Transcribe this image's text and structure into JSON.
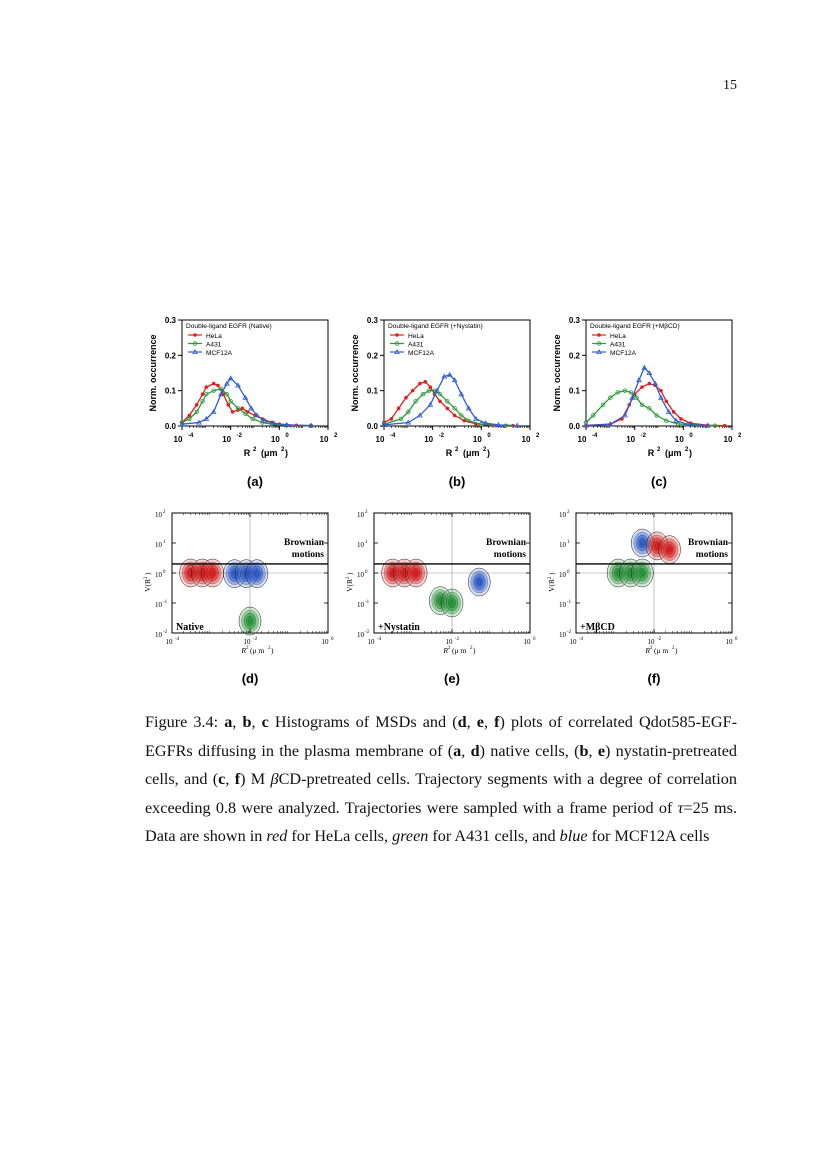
{
  "page_number": "15",
  "colors": {
    "hela": "#e02020",
    "a431": "#2a9a3a",
    "mcf12a": "#2f5fd0"
  },
  "chart_data": [
    {
      "type": "line",
      "panel_label": "(a)",
      "legend_title": "Double-ligand EGFR (Native)",
      "legend": [
        "HeLa",
        "A431",
        "MCF12A"
      ],
      "xlabel": "R",
      "ylabel": "Norm. occurrence",
      "xscale": "log",
      "xlim": [
        0.0001,
        100
      ],
      "ylim": [
        0,
        0.3
      ],
      "yticks": [
        "0.0",
        "0.1",
        "0.2",
        "0.3"
      ],
      "xticks": [
        "10",
        "10",
        "10",
        "10"
      ],
      "xtick_exps": [
        "-4",
        "-2",
        "0",
        "2"
      ],
      "series": [
        {
          "name": "HeLa",
          "points": [
            [
              0.0001,
              0.01
            ],
            [
              0.0002,
              0.03
            ],
            [
              0.0004,
              0.06
            ],
            [
              0.0007,
              0.09
            ],
            [
              0.001,
              0.11
            ],
            [
              0.002,
              0.12
            ],
            [
              0.003,
              0.115
            ],
            [
              0.005,
              0.09
            ],
            [
              0.008,
              0.06
            ],
            [
              0.012,
              0.04
            ],
            [
              0.02,
              0.045
            ],
            [
              0.03,
              0.05
            ],
            [
              0.05,
              0.04
            ],
            [
              0.1,
              0.03
            ],
            [
              0.2,
              0.02
            ],
            [
              0.5,
              0.01
            ],
            [
              1,
              0.005
            ],
            [
              5,
              0.002
            ],
            [
              20,
              0.001
            ]
          ]
        },
        {
          "name": "A431",
          "points": [
            [
              0.0001,
              0.01
            ],
            [
              0.0002,
              0.02
            ],
            [
              0.0004,
              0.04
            ],
            [
              0.0007,
              0.07
            ],
            [
              0.001,
              0.09
            ],
            [
              0.002,
              0.1
            ],
            [
              0.004,
              0.105
            ],
            [
              0.007,
              0.09
            ],
            [
              0.01,
              0.07
            ],
            [
              0.02,
              0.05
            ],
            [
              0.04,
              0.035
            ],
            [
              0.08,
              0.02
            ],
            [
              0.2,
              0.01
            ],
            [
              0.5,
              0.005
            ],
            [
              2,
              0.002
            ],
            [
              20,
              0.001
            ]
          ]
        },
        {
          "name": "MCF12A",
          "points": [
            [
              0.0001,
              0.005
            ],
            [
              0.0005,
              0.01
            ],
            [
              0.001,
              0.02
            ],
            [
              0.002,
              0.04
            ],
            [
              0.004,
              0.09
            ],
            [
              0.007,
              0.12
            ],
            [
              0.01,
              0.135
            ],
            [
              0.02,
              0.115
            ],
            [
              0.04,
              0.08
            ],
            [
              0.07,
              0.05
            ],
            [
              0.12,
              0.03
            ],
            [
              0.25,
              0.015
            ],
            [
              0.6,
              0.007
            ],
            [
              2,
              0.003
            ],
            [
              20,
              0.001
            ]
          ]
        }
      ]
    },
    {
      "type": "line",
      "panel_label": "(b)",
      "legend_title": "Double-ligand EGFR (+Nystatin)",
      "legend": [
        "HeLa",
        "A431",
        "MCF12A"
      ],
      "xlabel": "R",
      "ylabel": "Norm. occurrence",
      "xscale": "log",
      "xlim": [
        0.0001,
        100
      ],
      "ylim": [
        0,
        0.3
      ],
      "yticks": [
        "0.0",
        "0.1",
        "0.2",
        "0.3"
      ],
      "xticks": [
        "10",
        "10",
        "10",
        "10"
      ],
      "xtick_exps": [
        "-4",
        "-2",
        "0",
        "2"
      ],
      "series": [
        {
          "name": "HeLa",
          "points": [
            [
              0.0001,
              0.01
            ],
            [
              0.0002,
              0.02
            ],
            [
              0.0004,
              0.05
            ],
            [
              0.0008,
              0.08
            ],
            [
              0.0015,
              0.1
            ],
            [
              0.003,
              0.12
            ],
            [
              0.005,
              0.125
            ],
            [
              0.008,
              0.11
            ],
            [
              0.012,
              0.09
            ],
            [
              0.02,
              0.07
            ],
            [
              0.04,
              0.05
            ],
            [
              0.08,
              0.03
            ],
            [
              0.2,
              0.015
            ],
            [
              0.6,
              0.006
            ],
            [
              3,
              0.002
            ],
            [
              20,
              0.001
            ]
          ]
        },
        {
          "name": "A431",
          "points": [
            [
              0.0001,
              0.005
            ],
            [
              0.0005,
              0.02
            ],
            [
              0.001,
              0.04
            ],
            [
              0.002,
              0.07
            ],
            [
              0.004,
              0.09
            ],
            [
              0.007,
              0.1
            ],
            [
              0.012,
              0.1
            ],
            [
              0.02,
              0.09
            ],
            [
              0.04,
              0.07
            ],
            [
              0.08,
              0.05
            ],
            [
              0.15,
              0.03
            ],
            [
              0.3,
              0.015
            ],
            [
              1,
              0.005
            ],
            [
              10,
              0.001
            ]
          ]
        },
        {
          "name": "MCF12A",
          "points": [
            [
              0.0001,
              0.003
            ],
            [
              0.001,
              0.01
            ],
            [
              0.003,
              0.03
            ],
            [
              0.008,
              0.06
            ],
            [
              0.015,
              0.1
            ],
            [
              0.03,
              0.14
            ],
            [
              0.05,
              0.145
            ],
            [
              0.08,
              0.13
            ],
            [
              0.15,
              0.09
            ],
            [
              0.3,
              0.05
            ],
            [
              0.6,
              0.02
            ],
            [
              1.5,
              0.008
            ],
            [
              5,
              0.003
            ],
            [
              30,
              0.001
            ]
          ]
        }
      ]
    },
    {
      "type": "line",
      "panel_label": "(c)",
      "legend_title": "Double-ligand EGFR (+MβCD)",
      "legend": [
        "HeLa",
        "A431",
        "MCF12A"
      ],
      "xlabel": "R",
      "ylabel": "Norm. occurrence",
      "xscale": "log",
      "xlim": [
        0.0001,
        100
      ],
      "ylim": [
        0,
        0.3
      ],
      "yticks": [
        "0.0",
        "0.1",
        "0.2",
        "0.3"
      ],
      "xticks": [
        "10",
        "10",
        "10",
        "10"
      ],
      "xtick_exps": [
        "-4",
        "-2",
        "0",
        "2"
      ],
      "series": [
        {
          "name": "HeLa",
          "points": [
            [
              0.0001,
              0.002
            ],
            [
              0.001,
              0.005
            ],
            [
              0.003,
              0.02
            ],
            [
              0.006,
              0.06
            ],
            [
              0.01,
              0.09
            ],
            [
              0.02,
              0.11
            ],
            [
              0.04,
              0.12
            ],
            [
              0.07,
              0.115
            ],
            [
              0.12,
              0.1
            ],
            [
              0.2,
              0.07
            ],
            [
              0.4,
              0.04
            ],
            [
              0.8,
              0.02
            ],
            [
              2,
              0.008
            ],
            [
              10,
              0.002
            ],
            [
              50,
              0.001
            ]
          ]
        },
        {
          "name": "A431",
          "points": [
            [
              0.0001,
              0.01
            ],
            [
              0.0002,
              0.03
            ],
            [
              0.0005,
              0.06
            ],
            [
              0.001,
              0.08
            ],
            [
              0.002,
              0.095
            ],
            [
              0.004,
              0.1
            ],
            [
              0.007,
              0.095
            ],
            [
              0.012,
              0.08
            ],
            [
              0.02,
              0.06
            ],
            [
              0.04,
              0.05
            ],
            [
              0.08,
              0.03
            ],
            [
              0.2,
              0.015
            ],
            [
              0.6,
              0.006
            ],
            [
              3,
              0.002
            ],
            [
              20,
              0.001
            ]
          ]
        },
        {
          "name": "MCF12A",
          "points": [
            [
              0.0001,
              0.001
            ],
            [
              0.001,
              0.005
            ],
            [
              0.004,
              0.03
            ],
            [
              0.008,
              0.08
            ],
            [
              0.015,
              0.13
            ],
            [
              0.025,
              0.165
            ],
            [
              0.04,
              0.15
            ],
            [
              0.07,
              0.12
            ],
            [
              0.12,
              0.08
            ],
            [
              0.25,
              0.04
            ],
            [
              0.5,
              0.015
            ],
            [
              1.5,
              0.005
            ],
            [
              10,
              0.001
            ]
          ]
        }
      ]
    },
    {
      "type": "contour",
      "panel_label": "(d)",
      "annotation": "Native",
      "region_label": "Brownian motions",
      "xlabel": "R",
      "ylabel": "V(R",
      "xscale": "log",
      "yscale": "log",
      "xlim": [
        0.0001,
        1
      ],
      "ylim": [
        0.01,
        100
      ],
      "threshold_y": 2,
      "xticks": [
        "10",
        "10",
        "10"
      ],
      "xtick_exps": [
        "-4",
        "-2",
        "0"
      ],
      "yticks": [
        "10",
        "10",
        "10",
        "10",
        "10"
      ],
      "ytick_exps": [
        "-2",
        "-1",
        "0",
        "1",
        "2"
      ],
      "clusters": [
        {
          "series": "HeLa",
          "x": 0.0003,
          "y": 1.0
        },
        {
          "series": "HeLa",
          "x": 0.0006,
          "y": 1.0
        },
        {
          "series": "HeLa",
          "x": 0.0011,
          "y": 1.0
        },
        {
          "series": "MCF12A",
          "x": 0.004,
          "y": 0.95
        },
        {
          "series": "MCF12A",
          "x": 0.008,
          "y": 0.95
        },
        {
          "series": "MCF12A",
          "x": 0.015,
          "y": 0.95
        },
        {
          "series": "A431",
          "x": 0.01,
          "y": 0.025
        }
      ]
    },
    {
      "type": "contour",
      "panel_label": "(e)",
      "annotation": "+Nystatin",
      "region_label": "Brownian motions",
      "xlabel": "R",
      "ylabel": "V(R",
      "xscale": "log",
      "yscale": "log",
      "xlim": [
        0.0001,
        1
      ],
      "ylim": [
        0.01,
        100
      ],
      "threshold_y": 2,
      "xticks": [
        "10",
        "10",
        "10"
      ],
      "xtick_exps": [
        "-4",
        "-2",
        "0"
      ],
      "yticks": [
        "10",
        "10",
        "10",
        "10",
        "10"
      ],
      "ytick_exps": [
        "-2",
        "-1",
        "0",
        "1",
        "2"
      ],
      "clusters": [
        {
          "series": "HeLa",
          "x": 0.0003,
          "y": 1.0
        },
        {
          "series": "HeLa",
          "x": 0.0006,
          "y": 1.0
        },
        {
          "series": "HeLa",
          "x": 0.0012,
          "y": 1.0
        },
        {
          "series": "A431",
          "x": 0.005,
          "y": 0.12
        },
        {
          "series": "A431",
          "x": 0.01,
          "y": 0.1
        },
        {
          "series": "MCF12A",
          "x": 0.05,
          "y": 0.5
        }
      ]
    },
    {
      "type": "contour",
      "panel_label": "(f)",
      "annotation": "+MβCD",
      "region_label": "Brownian motions",
      "xlabel": "R",
      "ylabel": "V(R",
      "xscale": "log",
      "yscale": "log",
      "xlim": [
        0.0001,
        1
      ],
      "ylim": [
        0.01,
        100
      ],
      "threshold_y": 2,
      "xticks": [
        "10",
        "10",
        "10"
      ],
      "xtick_exps": [
        "-4",
        "-2",
        "0"
      ],
      "yticks": [
        "10",
        "10",
        "10",
        "10",
        "10"
      ],
      "ytick_exps": [
        "-2",
        "-1",
        "0",
        "1",
        "2"
      ],
      "clusters": [
        {
          "series": "A431",
          "x": 0.0012,
          "y": 1.0
        },
        {
          "series": "A431",
          "x": 0.0025,
          "y": 1.0
        },
        {
          "series": "A431",
          "x": 0.005,
          "y": 1.0
        },
        {
          "series": "MCF12A",
          "x": 0.005,
          "y": 10
        },
        {
          "series": "HeLa",
          "x": 0.012,
          "y": 8
        },
        {
          "series": "HeLa",
          "x": 0.025,
          "y": 6
        }
      ]
    }
  ],
  "caption": {
    "parts": [
      "Figure 3.4: ",
      {
        "b": "a"
      },
      ", ",
      {
        "b": "b"
      },
      ", ",
      {
        "b": "c"
      },
      " Histograms of MSDs and (",
      {
        "b": "d"
      },
      ", ",
      {
        "b": "e"
      },
      ", ",
      {
        "b": "f"
      },
      ") plots of correlated Qdot585-EGF-EGFRs diffusing in the plasma membrane of (",
      {
        "b": "a"
      },
      ", ",
      {
        "b": "d"
      },
      ") native cells, (",
      {
        "b": "b"
      },
      ", ",
      {
        "b": "e"
      },
      ") nystatin-pretreated cells, and (",
      {
        "b": "c"
      },
      ", ",
      {
        "b": "f"
      },
      ") M ",
      {
        "i": "β"
      },
      "CD-pretreated cells. Trajectory segments with a degree of correlation exceeding 0.8 were analyzed.  Trajectories were sampled with a frame period of ",
      {
        "i": "τ"
      },
      "=25 ms.  Data are shown in ",
      {
        "i": "red"
      },
      " for HeLa cells, ",
      {
        "i": "green"
      },
      " for A431 cells, and ",
      {
        "i": "blue"
      },
      " for MCF12A cells"
    ]
  }
}
